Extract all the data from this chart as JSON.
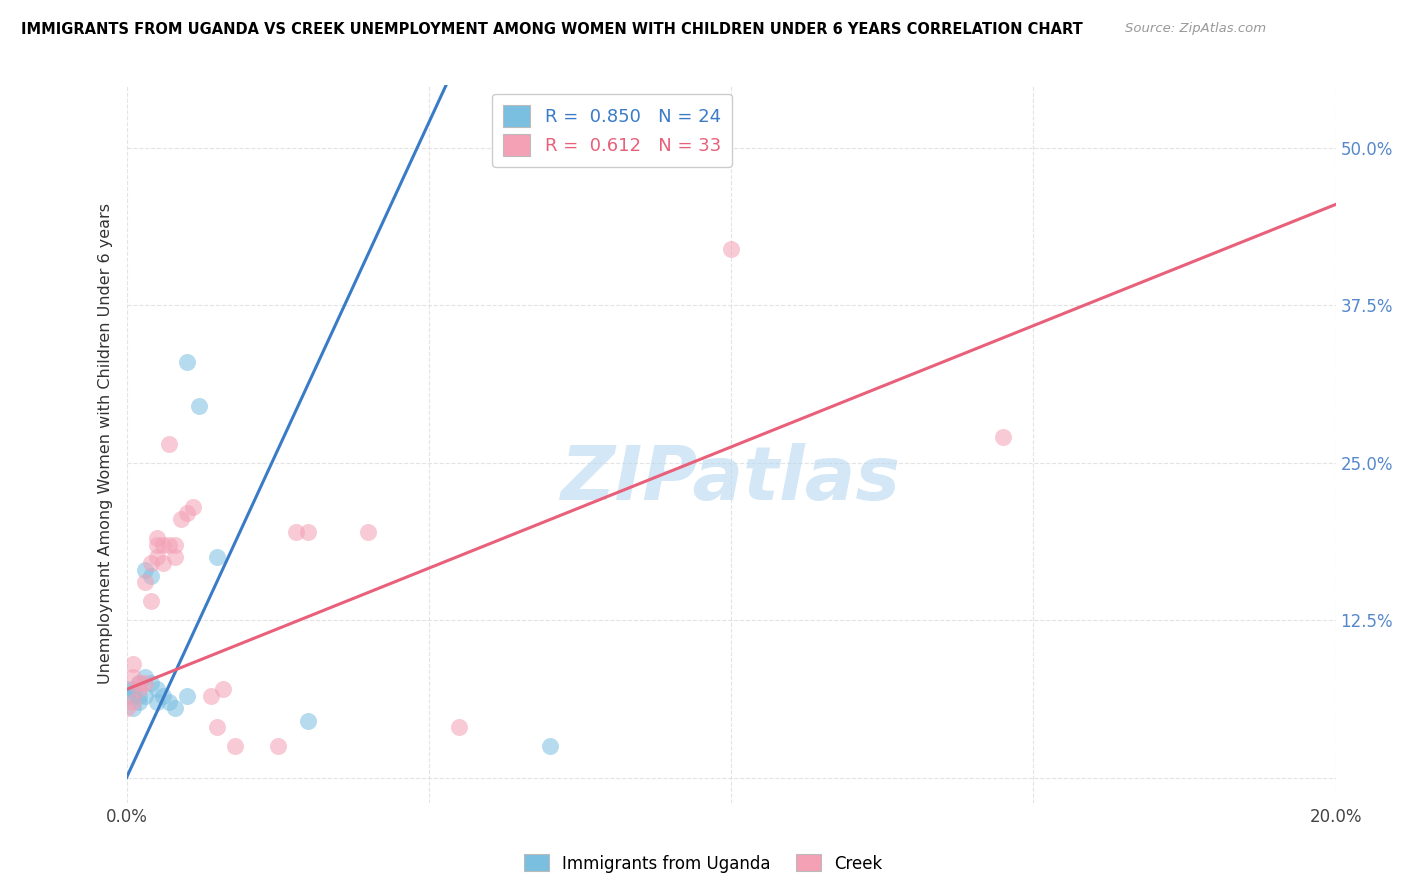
{
  "title": "IMMIGRANTS FROM UGANDA VS CREEK UNEMPLOYMENT AMONG WOMEN WITH CHILDREN UNDER 6 YEARS CORRELATION CHART",
  "source": "Source: ZipAtlas.com",
  "ylabel": "Unemployment Among Women with Children Under 6 years",
  "xlim": [
    0.0,
    0.2
  ],
  "ylim": [
    -0.02,
    0.55
  ],
  "xticks": [
    0.0,
    0.05,
    0.1,
    0.15,
    0.2
  ],
  "xticklabels": [
    "0.0%",
    "",
    "",
    "",
    "20.0%"
  ],
  "yticks": [
    0.0,
    0.125,
    0.25,
    0.375,
    0.5
  ],
  "yticklabels": [
    "",
    "12.5%",
    "25.0%",
    "37.5%",
    "50.0%"
  ],
  "blue_R": 0.85,
  "blue_N": 24,
  "pink_R": 0.612,
  "pink_N": 33,
  "watermark": "ZIPatlas",
  "blue_color": "#7bbfe0",
  "pink_color": "#f4a0b5",
  "blue_line_color": "#3a7bc8",
  "pink_line_color": "#e8607a",
  "blue_scatter": [
    [
      0.0,
      0.065
    ],
    [
      0.0,
      0.07
    ],
    [
      0.001,
      0.055
    ],
    [
      0.001,
      0.065
    ],
    [
      0.001,
      0.07
    ],
    [
      0.002,
      0.06
    ],
    [
      0.002,
      0.065
    ],
    [
      0.002,
      0.075
    ],
    [
      0.003,
      0.065
    ],
    [
      0.003,
      0.08
    ],
    [
      0.003,
      0.165
    ],
    [
      0.004,
      0.075
    ],
    [
      0.004,
      0.16
    ],
    [
      0.005,
      0.06
    ],
    [
      0.005,
      0.07
    ],
    [
      0.006,
      0.065
    ],
    [
      0.007,
      0.06
    ],
    [
      0.008,
      0.055
    ],
    [
      0.01,
      0.065
    ],
    [
      0.01,
      0.33
    ],
    [
      0.012,
      0.295
    ],
    [
      0.015,
      0.175
    ],
    [
      0.03,
      0.045
    ],
    [
      0.07,
      0.025
    ]
  ],
  "pink_scatter": [
    [
      0.0,
      0.055
    ],
    [
      0.001,
      0.06
    ],
    [
      0.001,
      0.08
    ],
    [
      0.001,
      0.09
    ],
    [
      0.002,
      0.07
    ],
    [
      0.002,
      0.075
    ],
    [
      0.003,
      0.075
    ],
    [
      0.003,
      0.155
    ],
    [
      0.004,
      0.14
    ],
    [
      0.004,
      0.17
    ],
    [
      0.005,
      0.175
    ],
    [
      0.005,
      0.185
    ],
    [
      0.005,
      0.19
    ],
    [
      0.006,
      0.17
    ],
    [
      0.006,
      0.185
    ],
    [
      0.007,
      0.185
    ],
    [
      0.007,
      0.265
    ],
    [
      0.008,
      0.175
    ],
    [
      0.008,
      0.185
    ],
    [
      0.009,
      0.205
    ],
    [
      0.01,
      0.21
    ],
    [
      0.011,
      0.215
    ],
    [
      0.014,
      0.065
    ],
    [
      0.015,
      0.04
    ],
    [
      0.016,
      0.07
    ],
    [
      0.018,
      0.025
    ],
    [
      0.025,
      0.025
    ],
    [
      0.028,
      0.195
    ],
    [
      0.03,
      0.195
    ],
    [
      0.04,
      0.195
    ],
    [
      0.055,
      0.04
    ],
    [
      0.1,
      0.42
    ],
    [
      0.145,
      0.27
    ]
  ],
  "bottom_legend": [
    "Immigrants from Uganda",
    "Creek"
  ]
}
